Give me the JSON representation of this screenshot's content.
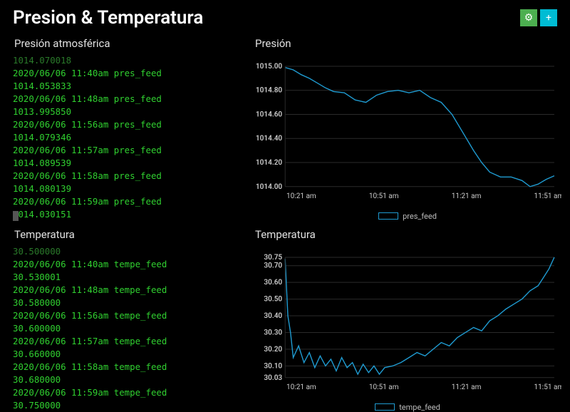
{
  "header": {
    "title": "Presion & Temperatura",
    "gear_icon": "⚙",
    "add_icon": "+"
  },
  "colors": {
    "background": "#000000",
    "log_text": "#30d030",
    "log_faded": "#2a7a2a",
    "chart_line": "#1f9bd1",
    "axis_text": "#cccccc",
    "grid_line": "#2a2a2a"
  },
  "pressure_log": {
    "title": "Presión atmosférica",
    "feed_name": "pres_feed",
    "partial_top": "1014.070018",
    "entries": [
      {
        "ts": "2020/06/06 11:40am",
        "value": "1014.053833"
      },
      {
        "ts": "2020/06/06 11:48am",
        "value": "1013.995850"
      },
      {
        "ts": "2020/06/06 11:56am",
        "value": "1014.079346"
      },
      {
        "ts": "2020/06/06 11:57am",
        "value": "1014.089539"
      },
      {
        "ts": "2020/06/06 11:58am",
        "value": "1014.080139"
      },
      {
        "ts": "2020/06/06 11:59am",
        "value": "1014.030151"
      }
    ]
  },
  "temperature_log": {
    "title": "Temperatura",
    "feed_name": "tempe_feed",
    "partial_top": "30.500000",
    "entries": [
      {
        "ts": "2020/06/06 11:40am",
        "value": "30.530001"
      },
      {
        "ts": "2020/06/06 11:48am",
        "value": "30.580000"
      },
      {
        "ts": "2020/06/06 11:56am",
        "value": "30.600000"
      },
      {
        "ts": "2020/06/06 11:57am",
        "value": "30.660000"
      },
      {
        "ts": "2020/06/06 11:58am",
        "value": "30.680000"
      },
      {
        "ts": "2020/06/06 11:59am",
        "value": "30.750000"
      }
    ]
  },
  "pressure_chart": {
    "title": "Presión",
    "type": "line",
    "legend_label": "pres_feed",
    "line_color": "#1f9bd1",
    "background_color": "#000000",
    "grid_color": "#2a2a2a",
    "axis_color": "#cccccc",
    "label_fontsize": 10,
    "ylim": [
      1014.0,
      1015.0
    ],
    "yticks": [
      1014.0,
      1014.2,
      1014.4,
      1014.6,
      1014.8,
      1015.0
    ],
    "xticks": [
      "10:21 am",
      "10:51 am",
      "11:21 am",
      "11:51 am"
    ],
    "xrange_idx": [
      0,
      100
    ],
    "series": [
      {
        "x": 0,
        "y": 1014.99
      },
      {
        "x": 3,
        "y": 1014.97
      },
      {
        "x": 6,
        "y": 1014.93
      },
      {
        "x": 9,
        "y": 1014.9
      },
      {
        "x": 12,
        "y": 1014.86
      },
      {
        "x": 15,
        "y": 1014.82
      },
      {
        "x": 18,
        "y": 1014.79
      },
      {
        "x": 22,
        "y": 1014.78
      },
      {
        "x": 26,
        "y": 1014.72
      },
      {
        "x": 30,
        "y": 1014.7
      },
      {
        "x": 34,
        "y": 1014.76
      },
      {
        "x": 38,
        "y": 1014.79
      },
      {
        "x": 42,
        "y": 1014.8
      },
      {
        "x": 46,
        "y": 1014.78
      },
      {
        "x": 50,
        "y": 1014.8
      },
      {
        "x": 54,
        "y": 1014.74
      },
      {
        "x": 58,
        "y": 1014.7
      },
      {
        "x": 62,
        "y": 1014.6
      },
      {
        "x": 66,
        "y": 1014.45
      },
      {
        "x": 70,
        "y": 1014.3
      },
      {
        "x": 73,
        "y": 1014.2
      },
      {
        "x": 76,
        "y": 1014.12
      },
      {
        "x": 80,
        "y": 1014.08
      },
      {
        "x": 84,
        "y": 1014.08
      },
      {
        "x": 88,
        "y": 1014.05
      },
      {
        "x": 91,
        "y": 1014.0
      },
      {
        "x": 94,
        "y": 1014.02
      },
      {
        "x": 97,
        "y": 1014.06
      },
      {
        "x": 100,
        "y": 1014.09
      }
    ]
  },
  "temperature_chart": {
    "title": "Temperatura",
    "type": "line",
    "legend_label": "tempe_feed",
    "line_color": "#1f9bd1",
    "background_color": "#000000",
    "grid_color": "#2a2a2a",
    "axis_color": "#cccccc",
    "label_fontsize": 10,
    "ylim": [
      30.03,
      30.75
    ],
    "yticks": [
      30.03,
      30.1,
      30.2,
      30.3,
      30.4,
      30.5,
      30.6,
      30.7,
      30.75
    ],
    "xticks": [
      "10:21 am",
      "10:51 am",
      "11:21 am",
      "11:51 am"
    ],
    "xrange_idx": [
      0,
      100
    ],
    "series": [
      {
        "x": 0,
        "y": 30.74
      },
      {
        "x": 1,
        "y": 30.4
      },
      {
        "x": 2,
        "y": 30.3
      },
      {
        "x": 3,
        "y": 30.15
      },
      {
        "x": 5,
        "y": 30.22
      },
      {
        "x": 7,
        "y": 30.12
      },
      {
        "x": 9,
        "y": 30.18
      },
      {
        "x": 11,
        "y": 30.09
      },
      {
        "x": 13,
        "y": 30.16
      },
      {
        "x": 15,
        "y": 30.1
      },
      {
        "x": 17,
        "y": 30.14
      },
      {
        "x": 19,
        "y": 30.07
      },
      {
        "x": 21,
        "y": 30.15
      },
      {
        "x": 23,
        "y": 30.09
      },
      {
        "x": 25,
        "y": 30.12
      },
      {
        "x": 27,
        "y": 30.05
      },
      {
        "x": 29,
        "y": 30.11
      },
      {
        "x": 31,
        "y": 30.06
      },
      {
        "x": 33,
        "y": 30.1
      },
      {
        "x": 35,
        "y": 30.05
      },
      {
        "x": 37,
        "y": 30.09
      },
      {
        "x": 40,
        "y": 30.1
      },
      {
        "x": 43,
        "y": 30.12
      },
      {
        "x": 46,
        "y": 30.15
      },
      {
        "x": 49,
        "y": 30.18
      },
      {
        "x": 52,
        "y": 30.16
      },
      {
        "x": 55,
        "y": 30.2
      },
      {
        "x": 58,
        "y": 30.24
      },
      {
        "x": 61,
        "y": 30.22
      },
      {
        "x": 64,
        "y": 30.27
      },
      {
        "x": 67,
        "y": 30.3
      },
      {
        "x": 70,
        "y": 30.33
      },
      {
        "x": 73,
        "y": 30.31
      },
      {
        "x": 76,
        "y": 30.37
      },
      {
        "x": 79,
        "y": 30.4
      },
      {
        "x": 82,
        "y": 30.44
      },
      {
        "x": 85,
        "y": 30.47
      },
      {
        "x": 88,
        "y": 30.5
      },
      {
        "x": 91,
        "y": 30.55
      },
      {
        "x": 94,
        "y": 30.58
      },
      {
        "x": 96,
        "y": 30.63
      },
      {
        "x": 98,
        "y": 30.68
      },
      {
        "x": 100,
        "y": 30.75
      }
    ]
  }
}
